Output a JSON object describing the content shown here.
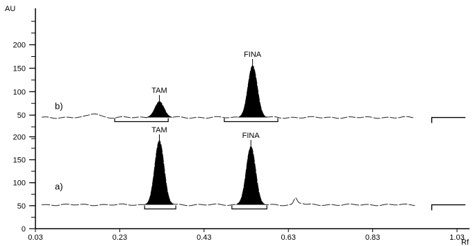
{
  "chart_data": {
    "type": "line",
    "ylabel": "AU",
    "xlabel": "Rf",
    "x_ticks": [
      "0.03",
      "0.23",
      "0.43",
      "0.63",
      "0.83",
      "1.03"
    ],
    "xlim": [
      0.03,
      1.03
    ],
    "upper_y_ticks": [
      "50",
      "100",
      "150",
      "200"
    ],
    "lower_y_ticks": [
      "0",
      "50",
      "100",
      "150",
      "200"
    ],
    "traces": [
      {
        "name": "b)",
        "baseline": 45,
        "peaks": [
          {
            "label": "TAM",
            "rf": 0.324,
            "height": 78,
            "bracket": [
              0.218,
              0.345
            ]
          },
          {
            "label": "FINA",
            "rf": 0.545,
            "height": 155,
            "bracket": [
              0.478,
              0.605
            ]
          }
        ]
      },
      {
        "name": "a)",
        "baseline": 52,
        "peaks": [
          {
            "label": "TAM",
            "rf": 0.324,
            "height": 190,
            "bracket": [
              0.289,
              0.363
            ]
          },
          {
            "label": "FINA",
            "rf": 0.541,
            "height": 178,
            "bracket": [
              0.496,
              0.579
            ]
          }
        ]
      }
    ]
  }
}
